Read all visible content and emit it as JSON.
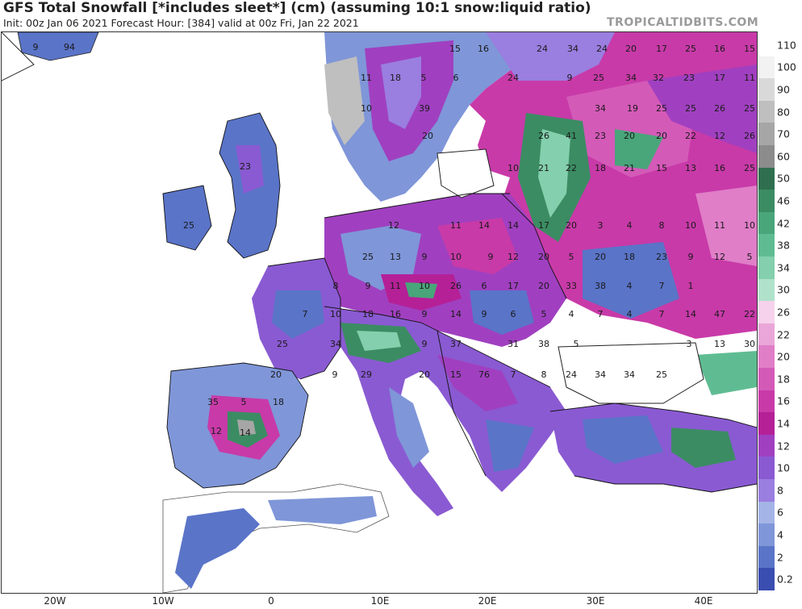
{
  "title": "GFS Total Snowfall [*includes sleet*] (cm) (assuming 10:1 snow:liquid ratio)",
  "subtitle": "Init: 00z Jan 06 2021   Forecast Hour: [384]   valid at 00z Fri, Jan 22 2021",
  "brand": "TROPICALTIDBITS.COM",
  "longitude_labels": [
    "20W",
    "10W",
    "0",
    "10E",
    "20E",
    "30E",
    "40E"
  ],
  "colorbar": {
    "labels": [
      "110",
      "100",
      "90",
      "80",
      "70",
      "60",
      "50",
      "46",
      "42",
      "38",
      "34",
      "30",
      "26",
      "22",
      "20",
      "18",
      "16",
      "14",
      "12",
      "10",
      "8",
      "6",
      "4",
      "2",
      "0.2"
    ],
    "colors": [
      "#ffffff",
      "#f2f2f2",
      "#d9d9d9",
      "#bfbfbf",
      "#a6a6a6",
      "#8c8c8c",
      "#2f6f4f",
      "#3b8c63",
      "#49a57a",
      "#5fbc92",
      "#84cfad",
      "#b0e2cb",
      "#f6d2ec",
      "#eaa6d8",
      "#e07ec8",
      "#d45ab8",
      "#c83aa8",
      "#b52097",
      "#a040c0",
      "#8a5ad2",
      "#9a7ee0",
      "#a4b4e6",
      "#7f96d8",
      "#5a74c8",
      "#3a4db0"
    ]
  },
  "map_labels": [
    "9",
    "94",
    "15",
    "16",
    "24",
    "34",
    "24",
    "20",
    "17",
    "25",
    "16",
    "15",
    "11",
    "18",
    "5",
    "6",
    "24",
    "9",
    "25",
    "34",
    "32",
    "23",
    "17",
    "11",
    "10",
    "39",
    "34",
    "19",
    "25",
    "25",
    "26",
    "25",
    "20",
    "26",
    "41",
    "23",
    "20",
    "20",
    "22",
    "12",
    "26",
    "23",
    "10",
    "21",
    "22",
    "18",
    "21",
    "15",
    "13",
    "16",
    "25",
    "25",
    "12",
    "11",
    "14",
    "14",
    "17",
    "20",
    "3",
    "4",
    "8",
    "10",
    "11",
    "10",
    "25",
    "13",
    "9",
    "10",
    "9",
    "12",
    "20",
    "5",
    "20",
    "18",
    "23",
    "9",
    "12",
    "5",
    "8",
    "9",
    "11",
    "10",
    "26",
    "6",
    "17",
    "20",
    "33",
    "38",
    "4",
    "7",
    "1",
    "7",
    "10",
    "18",
    "16",
    "9",
    "14",
    "9",
    "6",
    "5",
    "4",
    "7",
    "4",
    "7",
    "14",
    "47",
    "22",
    "25",
    "34",
    "9",
    "37",
    "31",
    "38",
    "5",
    "3",
    "13",
    "30",
    "20",
    "9",
    "29",
    "20",
    "15",
    "76",
    "7",
    "8",
    "24",
    "34",
    "34",
    "25",
    "35",
    "5",
    "18",
    "12",
    "14"
  ]
}
